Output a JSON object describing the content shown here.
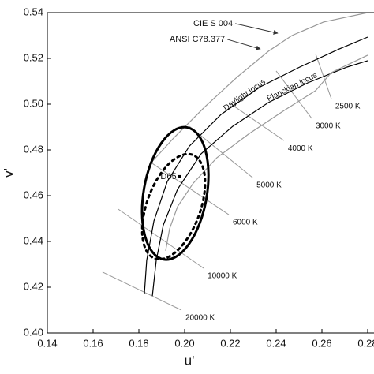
{
  "chart_data": {
    "type": "line",
    "xlabel": "u'",
    "ylabel": "v'",
    "xlim": [
      0.14,
      0.28
    ],
    "ylim": [
      0.4,
      0.54
    ],
    "xticks": [
      0.14,
      0.16,
      0.18,
      {
        "value": 0.2,
        "label": "0.20"
      },
      0.22,
      0.24,
      0.26,
      0.28
    ],
    "yticks": [
      {
        "value": 0.4,
        "label": "0.40"
      },
      0.42,
      0.44,
      0.46,
      0.48,
      {
        "value": 0.5,
        "label": "0.50"
      },
      0.52,
      0.54
    ],
    "series": [
      {
        "name": "Daylight locus",
        "color": "#000000",
        "x": [
          0.1824,
          0.1834,
          0.1866,
          0.1924,
          0.2021,
          0.2159,
          0.2331,
          0.2503,
          0.2676,
          0.28
        ],
        "y": [
          0.4172,
          0.4317,
          0.449,
          0.4662,
          0.4817,
          0.4955,
          0.5076,
          0.5162,
          0.5241,
          0.5293
        ]
      },
      {
        "name": "Planckian locus",
        "color": "#000000",
        "x": [
          0.1859,
          0.1876,
          0.1907,
          0.1969,
          0.2072,
          0.221,
          0.2366,
          0.2538,
          0.271,
          0.28
        ],
        "y": [
          0.4162,
          0.4317,
          0.4472,
          0.4628,
          0.4783,
          0.4903,
          0.5007,
          0.5093,
          0.5162,
          0.519
        ]
      },
      {
        "color": "#999999",
        "x": [
          0.1848,
          0.1952,
          0.209,
          0.2228,
          0.2366,
          0.2469,
          0.2607,
          0.28
        ],
        "y": [
          0.4738,
          0.4852,
          0.499,
          0.5117,
          0.5231,
          0.53,
          0.5359,
          0.54
        ]
      },
      {
        "color": "#999999",
        "x": [
          0.1917,
          0.1934,
          0.1969,
          0.2038,
          0.2141,
          0.2279,
          0.2434,
          0.2572,
          0.2641,
          0.28
        ],
        "y": [
          0.4359,
          0.4455,
          0.4552,
          0.4655,
          0.4766,
          0.4869,
          0.4972,
          0.5059,
          0.5138,
          0.5214
        ]
      }
    ],
    "isotherms": [
      {
        "label": "20000 K",
        "x": [
          0.1641,
          0.1986
        ],
        "y": [
          0.4266,
          0.41
        ]
      },
      {
        "label": "10000 K",
        "x": [
          0.171,
          0.2083
        ],
        "y": [
          0.4541,
          0.4283
        ]
      },
      {
        "label": "6000 K",
        "x": [
          0.1848,
          0.2193
        ],
        "y": [
          0.4748,
          0.4517
        ]
      },
      {
        "label": "5000 K",
        "x": [
          0.2021,
          0.2297
        ],
        "y": [
          0.4903,
          0.4679
        ]
      },
      {
        "label": "4000 K",
        "x": [
          0.2193,
          0.2434
        ],
        "y": [
          0.5007,
          0.4841
        ]
      },
      {
        "label": "3000 K",
        "x": [
          0.24,
          0.2555
        ],
        "y": [
          0.5145,
          0.4938
        ]
      },
      {
        "label": "2500 K",
        "x": [
          0.2572,
          0.2641
        ],
        "y": [
          0.5221,
          0.5024
        ]
      }
    ],
    "ellipses": [
      {
        "color": "#000000",
        "style": "solid",
        "cx": 0.1959,
        "cy": 0.461,
        "rx": 0.0138,
        "ry": 0.0293,
        "angle": 10
      },
      {
        "color": "#000000",
        "style": "dotted",
        "cx": 0.1952,
        "cy": 0.4552,
        "rx": 0.0117,
        "ry": 0.0241,
        "angle": 20
      }
    ],
    "point": {
      "label": "D65",
      "x": 0.1978,
      "y": 0.4683
    },
    "annotations": [
      {
        "text": "CIE S 004",
        "x": 0.2038,
        "y": 0.5352,
        "arrow_x": 0.2407,
        "arrow_y": 0.531
      },
      {
        "text": "ANSI C78.377",
        "x": 0.1934,
        "y": 0.5283,
        "arrow_x": 0.2331,
        "arrow_y": 0.5241
      }
    ]
  }
}
